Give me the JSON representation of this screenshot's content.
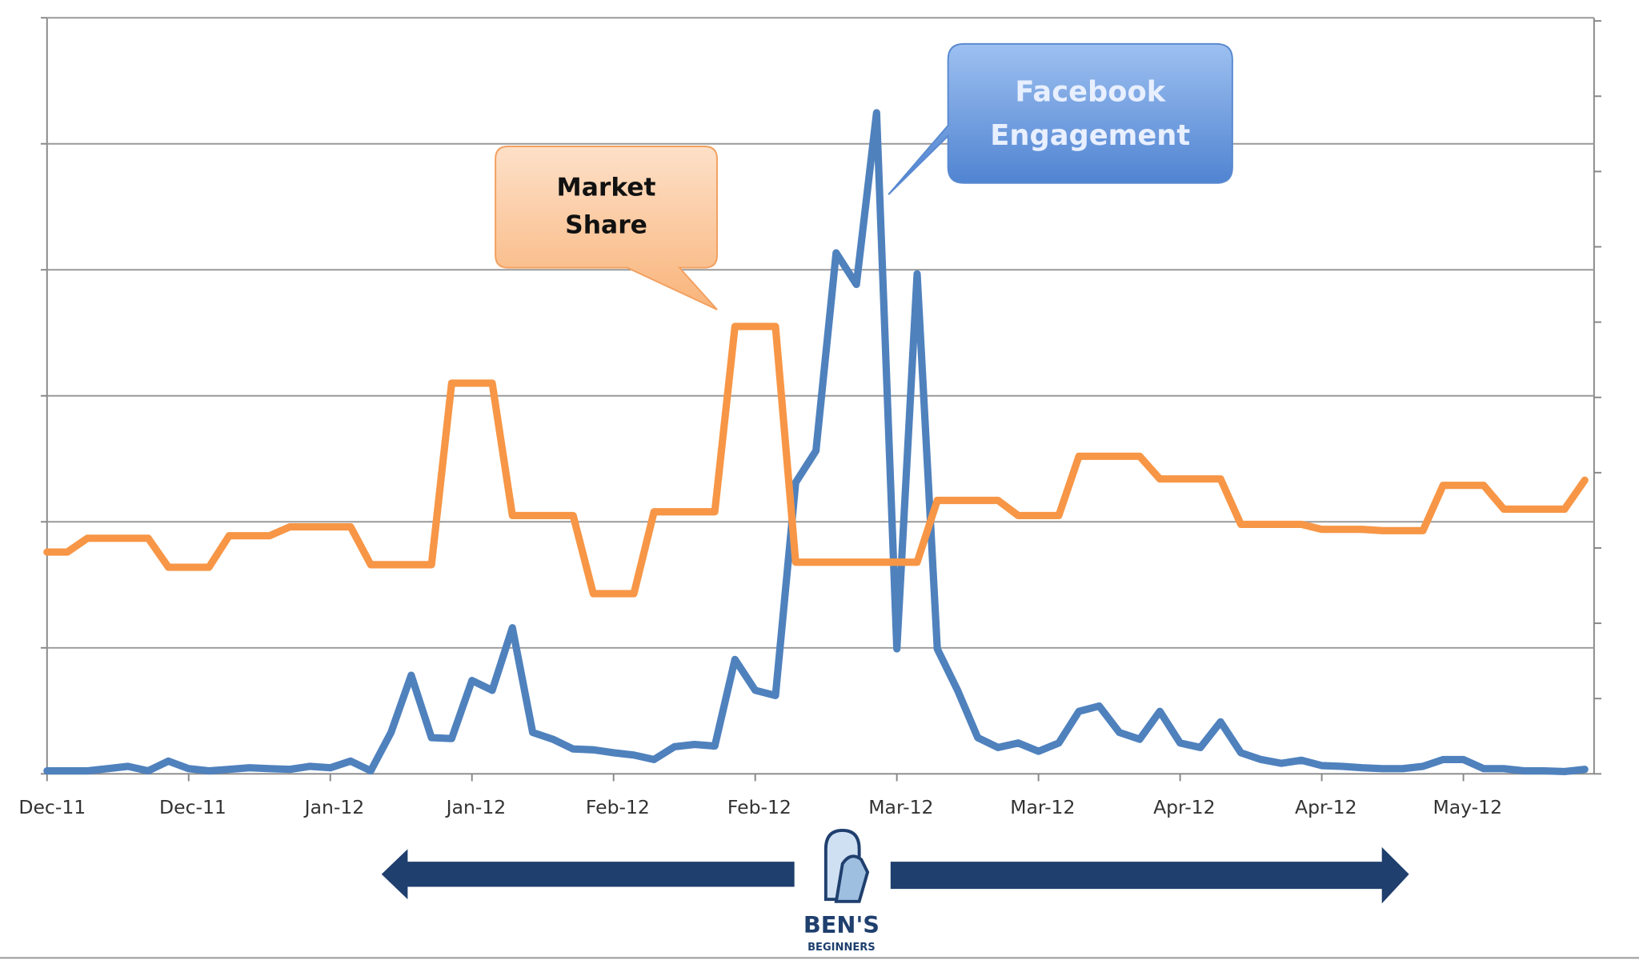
{
  "chart_data": {
    "type": "line",
    "categories": [
      "Dec-11",
      null,
      null,
      null,
      null,
      null,
      null,
      "Dec-11",
      null,
      null,
      null,
      null,
      null,
      null,
      "Jan-12",
      null,
      null,
      null,
      null,
      null,
      null,
      "Jan-12",
      null,
      null,
      null,
      null,
      null,
      null,
      "Feb-12",
      null,
      null,
      null,
      null,
      null,
      null,
      "Feb-12",
      null,
      null,
      null,
      null,
      null,
      null,
      "Mar-12",
      null,
      null,
      null,
      null,
      null,
      null,
      "Mar-12",
      null,
      null,
      null,
      null,
      null,
      null,
      "Apr-12",
      null,
      null,
      null,
      null,
      null,
      null,
      "Apr-12",
      null,
      null,
      null,
      null,
      null,
      null,
      "May-12",
      null,
      null,
      null,
      null,
      null,
      null
    ],
    "series": [
      {
        "name": "Market Share",
        "color": "#f79646",
        "values": [
          1.76,
          1.76,
          1.87,
          1.87,
          1.87,
          1.87,
          1.64,
          1.64,
          1.64,
          1.89,
          1.89,
          1.89,
          1.96,
          1.96,
          1.96,
          1.96,
          1.66,
          1.66,
          1.66,
          1.66,
          3.1,
          3.1,
          3.1,
          2.05,
          2.05,
          2.05,
          2.05,
          1.43,
          1.43,
          1.43,
          2.08,
          2.08,
          2.08,
          2.08,
          3.55,
          3.55,
          3.55,
          1.68,
          1.68,
          1.68,
          1.68,
          1.68,
          1.68,
          1.68,
          2.17,
          2.17,
          2.17,
          2.17,
          2.05,
          2.05,
          2.05,
          2.52,
          2.52,
          2.52,
          2.52,
          2.34,
          2.34,
          2.34,
          2.34,
          1.98,
          1.98,
          1.98,
          1.98,
          1.94,
          1.94,
          1.94,
          1.93,
          1.93,
          1.93,
          2.29,
          2.29,
          2.29,
          2.1,
          2.1,
          2.1,
          2.1,
          2.33
        ]
      },
      {
        "name": "Facebook Engagement",
        "color": "#4f81bd",
        "axis": "y2",
        "values": [
          0.04,
          0.04,
          0.04,
          0.07,
          0.1,
          0.04,
          0.17,
          0.07,
          0.04,
          0.06,
          0.08,
          0.07,
          0.06,
          0.1,
          0.08,
          0.17,
          0.04,
          0.55,
          1.31,
          0.48,
          0.47,
          1.24,
          1.11,
          1.94,
          0.55,
          0.46,
          0.33,
          0.32,
          0.28,
          0.25,
          0.19,
          0.36,
          0.39,
          0.37,
          1.52,
          1.11,
          1.04,
          3.87,
          4.29,
          6.92,
          6.5,
          8.78,
          1.66,
          6.64,
          1.66,
          1.11,
          0.48,
          0.35,
          0.41,
          0.3,
          0.41,
          0.83,
          0.9,
          0.55,
          0.46,
          0.83,
          0.41,
          0.35,
          0.69,
          0.28,
          0.19,
          0.14,
          0.18,
          0.11,
          0.1,
          0.08,
          0.07,
          0.07,
          0.1,
          0.19,
          0.19,
          0.07,
          0.07,
          0.04,
          0.04,
          0.03,
          0.06
        ]
      }
    ],
    "ylim": [
      0,
      6
    ],
    "yticks": [
      0,
      1,
      2,
      3,
      4,
      5,
      6
    ],
    "y2lim": [
      0,
      10
    ],
    "y2ticks": [
      0,
      1,
      2,
      3,
      4,
      5,
      6,
      7,
      8,
      9,
      10
    ],
    "grid": true,
    "annotations": [
      {
        "lines": [
          "Market",
          "Share"
        ],
        "series": 0
      },
      {
        "lines": [
          "Facebook",
          "Engagement"
        ],
        "series": 1
      }
    ],
    "logo": {
      "name": "BEN'S",
      "tagline": "BEGINNERS"
    }
  }
}
